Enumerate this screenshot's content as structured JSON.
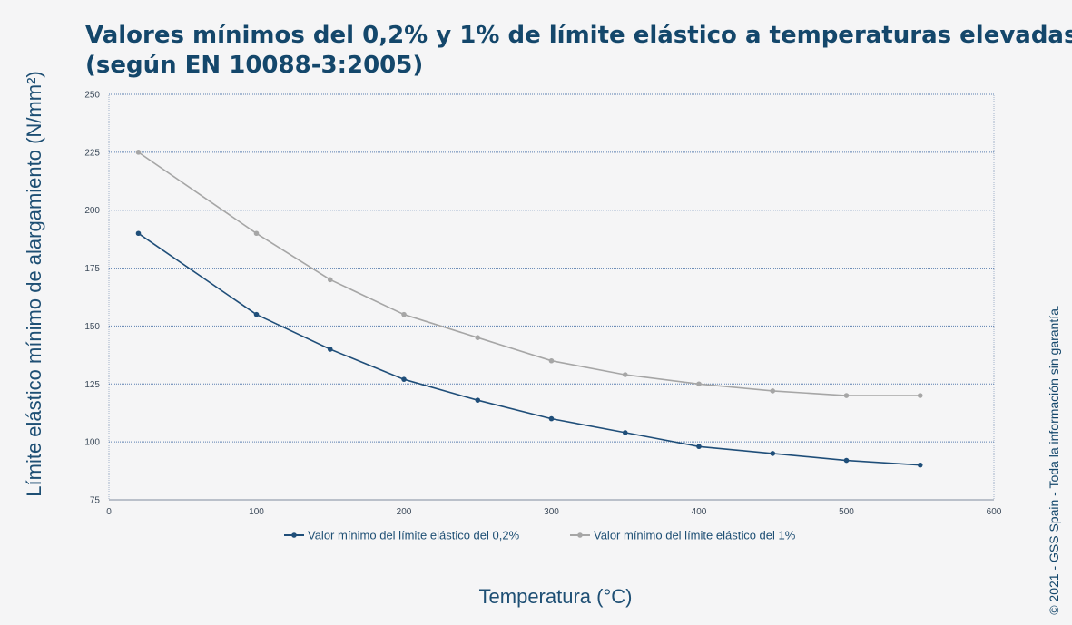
{
  "chart_data": {
    "type": "line",
    "title": "Valores mínimos del 0,2% y 1% de límite elástico a temperaturas elevadas",
    "subtitle": "(según EN 10088-3:2005)",
    "xlabel": "Temperatura (°C)",
    "ylabel": "Límite elástico mínimo de alargamiento (N/mm²)",
    "xlim": [
      0,
      600
    ],
    "ylim": [
      75,
      250
    ],
    "xticks": [
      0,
      100,
      200,
      300,
      400,
      500,
      600
    ],
    "yticks": [
      75,
      100,
      125,
      150,
      175,
      200,
      225,
      250
    ],
    "grid": "horizontal",
    "legend_position": "bottom",
    "series": [
      {
        "name": "Valor mínimo del límite elástico del 0,2%",
        "color": "#1f4e79",
        "x": [
          20,
          100,
          150,
          200,
          250,
          300,
          350,
          400,
          450,
          500,
          550
        ],
        "y": [
          190,
          155,
          140,
          127,
          118,
          110,
          104,
          98,
          95,
          92,
          90
        ]
      },
      {
        "name": "Valor mínimo del límite elástico del 1%",
        "color": "#a6a6a6",
        "x": [
          20,
          100,
          150,
          200,
          250,
          300,
          350,
          400,
          450,
          500,
          550
        ],
        "y": [
          225,
          190,
          170,
          155,
          145,
          135,
          129,
          125,
          122,
          120,
          120
        ]
      }
    ]
  },
  "copyright": "© 2021 - GSS Spain - Toda la información sin garantía.",
  "colors": {
    "title": "#14476b",
    "grid": "#5b7fb0",
    "background": "#f5f5f6"
  }
}
